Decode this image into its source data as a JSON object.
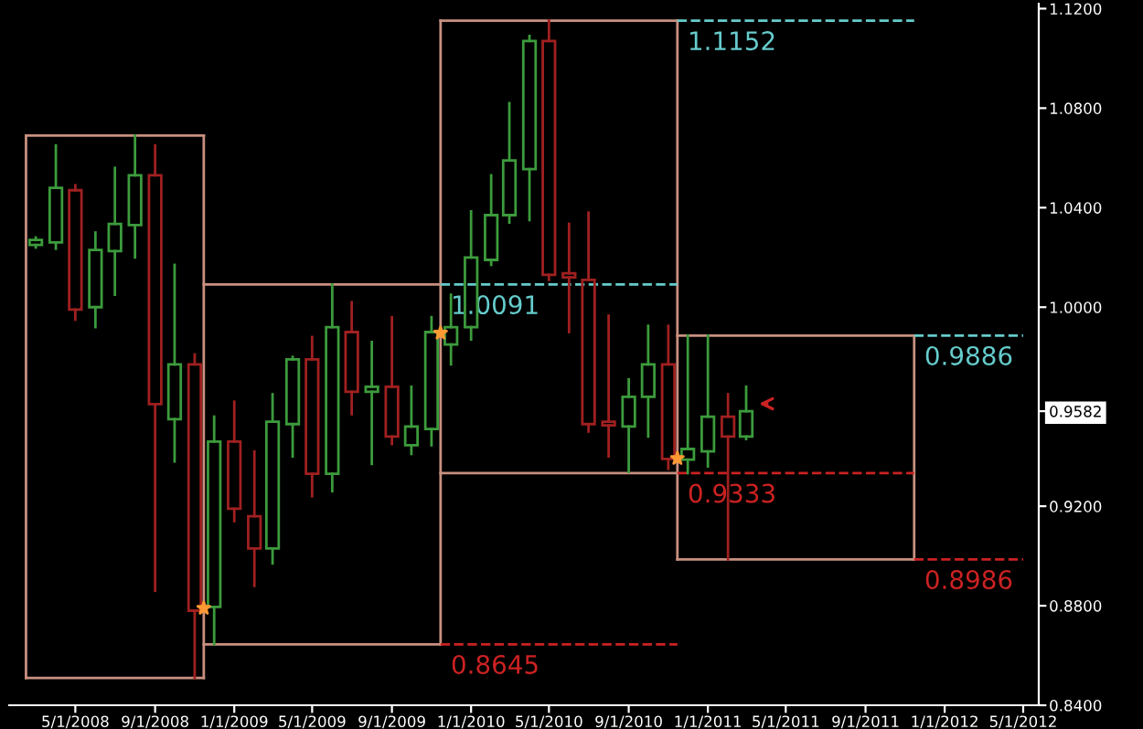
{
  "chart_data": {
    "type": "candlestick",
    "x": [
      "2008-03",
      "2008-04",
      "2008-05",
      "2008-06",
      "2008-07",
      "2008-08",
      "2008-09",
      "2008-10",
      "2008-11",
      "2008-12",
      "2009-01",
      "2009-02",
      "2009-03",
      "2009-04",
      "2009-05",
      "2009-06",
      "2009-07",
      "2009-08",
      "2009-09",
      "2009-10",
      "2009-11",
      "2009-12",
      "2010-01",
      "2010-02",
      "2010-03",
      "2010-04",
      "2010-05",
      "2010-06",
      "2010-07",
      "2010-08",
      "2010-09",
      "2010-10",
      "2010-11",
      "2010-12",
      "2011-01",
      "2011-02",
      "2011-03"
    ],
    "ohlc": [
      [
        1.025,
        1.028,
        1.024,
        1.027
      ],
      [
        1.026,
        1.065,
        1.0235,
        1.048
      ],
      [
        1.047,
        1.049,
        0.995,
        0.999
      ],
      [
        1.0,
        1.03,
        0.992,
        1.023
      ],
      [
        1.0225,
        1.056,
        1.005,
        1.0335
      ],
      [
        1.033,
        1.069,
        1.02,
        1.053
      ],
      [
        1.053,
        1.065,
        0.886,
        0.961
      ],
      [
        0.955,
        1.017,
        0.938,
        0.977
      ],
      [
        0.977,
        0.981,
        0.851,
        0.878
      ],
      [
        0.8795,
        0.956,
        0.8645,
        0.946
      ],
      [
        0.946,
        0.962,
        0.914,
        0.919
      ],
      [
        0.916,
        0.942,
        0.888,
        0.903
      ],
      [
        0.903,
        0.965,
        0.897,
        0.954
      ],
      [
        0.953,
        0.98,
        0.94,
        0.979
      ],
      [
        0.979,
        0.988,
        0.924,
        0.933
      ],
      [
        0.933,
        1.0091,
        0.926,
        0.992
      ],
      [
        0.99,
        1.002,
        0.957,
        0.966
      ],
      [
        0.966,
        0.986,
        0.937,
        0.968
      ],
      [
        0.968,
        0.996,
        0.945,
        0.948
      ],
      [
        0.9445,
        0.968,
        0.941,
        0.952
      ],
      [
        0.951,
        0.996,
        0.9445,
        0.99
      ],
      [
        0.985,
        1.005,
        0.977,
        0.992
      ],
      [
        0.992,
        1.0385,
        0.987,
        1.02
      ],
      [
        1.019,
        1.053,
        1.017,
        1.037
      ],
      [
        1.037,
        1.082,
        1.034,
        1.059
      ],
      [
        1.0555,
        1.109,
        1.035,
        1.107
      ],
      [
        1.107,
        1.1152,
        1.011,
        1.013
      ],
      [
        1.0136,
        1.0335,
        0.99,
        1.012
      ],
      [
        1.011,
        1.038,
        0.95,
        0.953
      ],
      [
        0.954,
        0.9966,
        0.94,
        0.9525
      ],
      [
        0.952,
        0.971,
        0.9338,
        0.964
      ],
      [
        0.964,
        0.9925,
        0.948,
        0.977
      ],
      [
        0.977,
        0.9925,
        0.935,
        0.939
      ],
      [
        0.9387,
        0.9886,
        0.9333,
        0.943
      ],
      [
        0.942,
        0.9886,
        0.936,
        0.956
      ],
      [
        0.956,
        0.965,
        0.8986,
        0.948
      ],
      [
        0.948,
        0.968,
        0.947,
        0.9582
      ]
    ],
    "colors": [
      "#3c9b3c",
      "#3c9b3c",
      "#a02020",
      "#3c9b3c",
      "#3c9b3c",
      "#3c9b3c",
      "#a02020",
      "#3c9b3c",
      "#a02020",
      "#3c9b3c",
      "#a02020",
      "#a02020",
      "#3c9b3c",
      "#3c9b3c",
      "#a02020",
      "#3c9b3c",
      "#a02020",
      "#3c9b3c",
      "#a02020",
      "#3c9b3c",
      "#3c9b3c",
      "#3c9b3c",
      "#3c9b3c",
      "#3c9b3c",
      "#3c9b3c",
      "#3c9b3c",
      "#a02020",
      "#a02020",
      "#a02020",
      "#a02020",
      "#3c9b3c",
      "#3c9b3c",
      "#a02020",
      "#3c9b3c",
      "#3c9b3c",
      "#a02020",
      "#3c9b3c"
    ],
    "series": [
      {
        "type": "line",
        "color": "#c89080",
        "line_style": "solid",
        "x": [
          "2008-02-15",
          "2008-11-15"
        ],
        "values": [
          1.069,
          1.069
        ]
      },
      {
        "type": "line",
        "color": "#c89080",
        "line_style": "solid",
        "x": [
          "2008-02-15",
          "2008-11-15"
        ],
        "values": [
          0.851,
          0.851
        ]
      },
      {
        "type": "line",
        "color": "#c89080",
        "line_style": "solid",
        "x": [
          "2008-11-15",
          "2009-11-15"
        ],
        "values": [
          1.0091,
          1.0091
        ]
      },
      {
        "type": "line",
        "color": "#c89080",
        "line_style": "solid",
        "x": [
          "2008-11-15",
          "2009-11-15"
        ],
        "values": [
          0.8645,
          0.8645
        ]
      },
      {
        "type": "line",
        "color": "#c89080",
        "line_style": "solid",
        "x": [
          "2009-11-15",
          "2010-11-15"
        ],
        "values": [
          1.1152,
          1.1152
        ]
      },
      {
        "type": "line",
        "color": "#c89080",
        "line_style": "solid",
        "x": [
          "2009-11-15",
          "2010-11-15"
        ],
        "values": [
          0.9333,
          0.9333
        ]
      },
      {
        "type": "line",
        "color": "#c89080",
        "line_style": "solid",
        "x": [
          "2010-11-15",
          "2011-11-15"
        ],
        "values": [
          0.9886,
          0.9886
        ]
      },
      {
        "type": "line",
        "color": "#c89080",
        "line_style": "solid",
        "x": [
          "2010-11-15",
          "2011-11-15"
        ],
        "values": [
          0.8986,
          0.8986
        ]
      },
      {
        "type": "line",
        "color": "#c89080",
        "line_style": "solid",
        "x": [
          "2008-02-15",
          "2008-02-15"
        ],
        "values": [
          0.851,
          1.069
        ]
      },
      {
        "type": "line",
        "color": "#c89080",
        "line_style": "solid",
        "x": [
          "2008-11-15",
          "2008-11-15"
        ],
        "values": [
          0.851,
          1.069
        ]
      },
      {
        "type": "line",
        "color": "#c89080",
        "line_style": "solid",
        "x": [
          "2009-11-15",
          "2009-11-15"
        ],
        "values": [
          0.8645,
          1.1152
        ]
      },
      {
        "type": "line",
        "color": "#c89080",
        "line_style": "solid",
        "x": [
          "2010-11-15",
          "2010-11-15"
        ],
        "values": [
          0.8986,
          1.1152
        ]
      },
      {
        "type": "line",
        "color": "#c89080",
        "line_style": "solid",
        "x": [
          "2011-11-15",
          "2011-11-15"
        ],
        "values": [
          0.8986,
          0.9886
        ]
      },
      {
        "type": "line",
        "color": "#66cccc",
        "line_style": "dashed",
        "x": [
          "2010-11-15",
          "2011-11-15"
        ],
        "values": [
          1.1152,
          1.1152
        ]
      },
      {
        "type": "line",
        "color": "#66cccc",
        "line_style": "dashed",
        "x": [
          "2009-11-15",
          "2010-11-15"
        ],
        "values": [
          1.0091,
          1.0091
        ]
      },
      {
        "type": "line",
        "color": "#66cccc",
        "line_style": "dashed",
        "x": [
          "2011-11-15",
          "2012-05-01"
        ],
        "values": [
          0.9886,
          0.9886
        ]
      },
      {
        "type": "line",
        "color": "#cc2222",
        "line_style": "dashed",
        "x": [
          "2010-11-15",
          "2011-11-15"
        ],
        "values": [
          0.9333,
          0.9333
        ]
      },
      {
        "type": "line",
        "color": "#cc2222",
        "line_style": "dashed",
        "x": [
          "2011-11-15",
          "2012-05-01"
        ],
        "values": [
          0.8986,
          0.8986
        ]
      },
      {
        "type": "line",
        "color": "#cc2222",
        "line_style": "dashed",
        "x": [
          "2009-11-15",
          "2010-11-15"
        ],
        "values": [
          0.8645,
          0.8645
        ]
      },
      {
        "type": "scatter",
        "color": "#ff9933",
        "marker": "star",
        "x": [
          "2008-11-15",
          "2009-11-15",
          "2010-11-15"
        ],
        "values": [
          0.879,
          0.9896,
          0.9392
        ]
      }
    ],
    "annotations": [
      {
        "text": "1.1152",
        "x": "2010-11-15",
        "y": 1.1152
      },
      {
        "text": "1.0091",
        "x": "2009-11-15",
        "y": 1.0091
      },
      {
        "text": "0.9886",
        "x": "2011-11-15",
        "y": 0.9886
      },
      {
        "text": "0.9333",
        "x": "2010-11-15",
        "y": 0.9333
      },
      {
        "text": "0.8986",
        "x": "2011-11-15",
        "y": 0.8986
      },
      {
        "text": "0.8645",
        "x": "2009-11-15",
        "y": 0.8645
      }
    ],
    "xlim": [
      "2008-01-20",
      "2012-05-25"
    ],
    "xticks": [
      {
        "value": "2008-05-01",
        "label": "5/1/2008"
      },
      {
        "value": "2008-09-01",
        "label": "9/1/2008"
      },
      {
        "value": "2009-01-01",
        "label": "1/1/2009"
      },
      {
        "value": "2009-05-01",
        "label": "5/1/2009"
      },
      {
        "value": "2009-09-01",
        "label": "9/1/2009"
      },
      {
        "value": "2010-01-01",
        "label": "1/1/2010"
      },
      {
        "value": "2010-05-01",
        "label": "5/1/2010"
      },
      {
        "value": "2010-09-01",
        "label": "9/1/2010"
      },
      {
        "value": "2011-01-01",
        "label": "1/1/2011"
      },
      {
        "value": "2011-05-01",
        "label": "5/1/2011"
      },
      {
        "value": "2011-09-01",
        "label": "9/1/2011"
      },
      {
        "value": "2012-01-01",
        "label": "1/1/2012"
      },
      {
        "value": "2012-05-01",
        "label": "5/1/2012"
      }
    ],
    "ylim": [
      0.84,
      1.122
    ],
    "yticks": [
      {
        "value": 0.84,
        "label": "0.8400"
      },
      {
        "value": 0.88,
        "label": "0.8800"
      },
      {
        "value": 0.92,
        "label": "0.9200"
      },
      {
        "value": 0.9582,
        "label": "0.9582"
      },
      {
        "value": 1.0,
        "label": "1.0000"
      },
      {
        "value": 1.04,
        "label": "1.0400"
      },
      {
        "value": 1.08,
        "label": "1.0800"
      },
      {
        "value": 1.12,
        "label": "1.1200"
      }
    ],
    "grid": false
  }
}
